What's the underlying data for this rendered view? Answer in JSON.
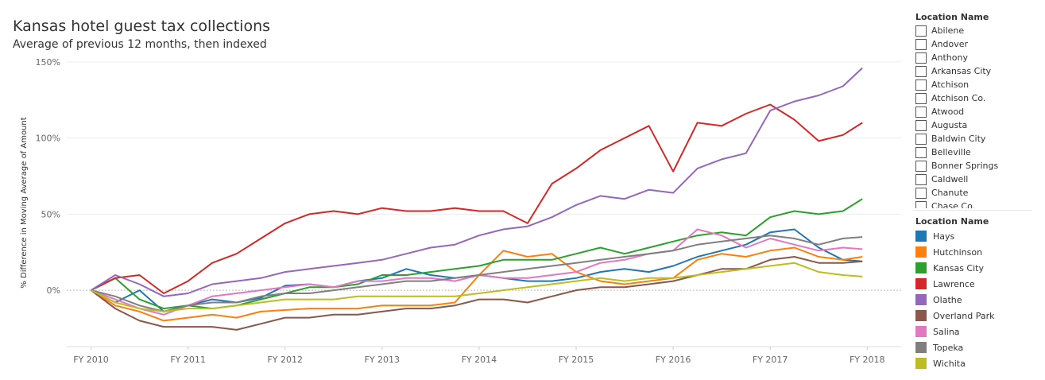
{
  "page": {
    "title": "Kansas hotel guest tax collections",
    "subtitle": "Average of previous 12 months, then indexed"
  },
  "filter": {
    "title": "Location Name",
    "items": [
      "Abilene",
      "Andover",
      "Anthony",
      "Arkansas City",
      "Atchison",
      "Atchison Co.",
      "Atwood",
      "Augusta",
      "Baldwin City",
      "Belleville",
      "Bonner Springs",
      "Caldwell",
      "Chanute",
      "Chase Co."
    ]
  },
  "legend": {
    "title": "Location Name"
  },
  "colors": {
    "Hays": "#1f77b4",
    "Hutchinson": "#ff7f0e",
    "Kansas City": "#2ca02c",
    "Lawrence": "#d62728",
    "Olathe": "#9467bd",
    "Overland Park": "#8c564b",
    "Salina": "#e377c2",
    "Topeka": "#7f7f7f",
    "Wichita": "#bcbd22"
  },
  "chart_data": {
    "type": "line",
    "ylabel": "% Difference in Moving Average of Amount",
    "xlabel": "",
    "ylim": [
      -37,
      152
    ],
    "xlim": [
      2009.75,
      2018.35
    ],
    "yticks": [
      0,
      50,
      100,
      150
    ],
    "ytick_labels": [
      "0%",
      "50%",
      "100%",
      "150%"
    ],
    "xticks": [
      2010,
      2011,
      2012,
      2013,
      2014,
      2015,
      2016,
      2017,
      2018
    ],
    "xtick_labels": [
      "FY 2010",
      "FY 2011",
      "FY 2012",
      "FY 2013",
      "FY 2014",
      "FY 2015",
      "FY 2016",
      "FY 2017",
      "FY 2018"
    ],
    "grid": true,
    "legend_position": "right",
    "series": [
      {
        "name": "Hays",
        "x": [
          2010.0,
          2010.25,
          2010.5,
          2010.75,
          2011.0,
          2011.25,
          2011.5,
          2011.75,
          2012.0,
          2012.25,
          2012.5,
          2012.75,
          2013.0,
          2013.25,
          2013.5,
          2013.75,
          2014.0,
          2014.25,
          2014.5,
          2014.75,
          2015.0,
          2015.25,
          2015.5,
          2015.75,
          2016.0,
          2016.25,
          2016.5,
          2016.75,
          2017.0,
          2017.25,
          2017.5,
          2017.75,
          2017.95
        ],
        "y": [
          0,
          -8,
          0,
          -14,
          -10,
          -6,
          -8,
          -5,
          3,
          4,
          2,
          6,
          8,
          14,
          10,
          8,
          10,
          8,
          6,
          6,
          8,
          12,
          14,
          12,
          16,
          22,
          26,
          30,
          38,
          40,
          28,
          20,
          19
        ]
      },
      {
        "name": "Hutchinson",
        "x": [
          2010.0,
          2010.25,
          2010.5,
          2010.75,
          2011.0,
          2011.25,
          2011.5,
          2011.75,
          2012.0,
          2012.25,
          2012.5,
          2012.75,
          2013.0,
          2013.25,
          2013.5,
          2013.75,
          2014.0,
          2014.25,
          2014.5,
          2014.75,
          2015.0,
          2015.25,
          2015.5,
          2015.75,
          2016.0,
          2016.25,
          2016.5,
          2016.75,
          2017.0,
          2017.25,
          2017.5,
          2017.75,
          2017.95
        ],
        "y": [
          0,
          -10,
          -14,
          -20,
          -18,
          -16,
          -18,
          -14,
          -13,
          -12,
          -12,
          -12,
          -10,
          -10,
          -10,
          -8,
          10,
          26,
          22,
          24,
          12,
          6,
          4,
          6,
          8,
          20,
          24,
          22,
          26,
          28,
          22,
          20,
          22
        ]
      },
      {
        "name": "Kansas City",
        "x": [
          2010.0,
          2010.25,
          2010.5,
          2010.75,
          2011.0,
          2011.25,
          2011.5,
          2011.75,
          2012.0,
          2012.25,
          2012.5,
          2012.75,
          2013.0,
          2013.25,
          2013.5,
          2013.75,
          2014.0,
          2014.25,
          2014.5,
          2014.75,
          2015.0,
          2015.25,
          2015.5,
          2015.75,
          2016.0,
          2016.25,
          2016.5,
          2016.75,
          2017.0,
          2017.25,
          2017.5,
          2017.75,
          2017.95
        ],
        "y": [
          0,
          8,
          -6,
          -12,
          -10,
          -12,
          -10,
          -6,
          -2,
          2,
          2,
          4,
          10,
          10,
          12,
          14,
          16,
          20,
          20,
          20,
          24,
          28,
          24,
          28,
          32,
          36,
          38,
          36,
          48,
          52,
          50,
          52,
          60
        ]
      },
      {
        "name": "Lawrence",
        "x": [
          2010.0,
          2010.25,
          2010.5,
          2010.75,
          2011.0,
          2011.25,
          2011.5,
          2011.75,
          2012.0,
          2012.25,
          2012.5,
          2012.75,
          2013.0,
          2013.25,
          2013.5,
          2013.75,
          2014.0,
          2014.25,
          2014.5,
          2014.75,
          2015.0,
          2015.25,
          2015.5,
          2015.75,
          2016.0,
          2016.25,
          2016.5,
          2016.75,
          2017.0,
          2017.25,
          2017.5,
          2017.75,
          2017.95
        ],
        "y": [
          0,
          8,
          10,
          -2,
          6,
          18,
          24,
          34,
          44,
          50,
          52,
          50,
          54,
          52,
          52,
          54,
          52,
          52,
          44,
          70,
          80,
          92,
          100,
          108,
          78,
          110,
          108,
          116,
          122,
          112,
          98,
          102,
          110
        ]
      },
      {
        "name": "Olathe",
        "x": [
          2010.0,
          2010.25,
          2010.5,
          2010.75,
          2011.0,
          2011.25,
          2011.5,
          2011.75,
          2012.0,
          2012.25,
          2012.5,
          2012.75,
          2013.0,
          2013.25,
          2013.5,
          2013.75,
          2014.0,
          2014.25,
          2014.5,
          2014.75,
          2015.0,
          2015.25,
          2015.5,
          2015.75,
          2016.0,
          2016.25,
          2016.5,
          2016.75,
          2017.0,
          2017.25,
          2017.5,
          2017.75,
          2017.95
        ],
        "y": [
          0,
          10,
          4,
          -4,
          -2,
          4,
          6,
          8,
          12,
          14,
          16,
          18,
          20,
          24,
          28,
          30,
          36,
          40,
          42,
          48,
          56,
          62,
          60,
          66,
          64,
          80,
          86,
          90,
          118,
          124,
          128,
          134,
          146
        ]
      },
      {
        "name": "Overland Park",
        "x": [
          2010.0,
          2010.25,
          2010.5,
          2010.75,
          2011.0,
          2011.25,
          2011.5,
          2011.75,
          2012.0,
          2012.25,
          2012.5,
          2012.75,
          2013.0,
          2013.25,
          2013.5,
          2013.75,
          2014.0,
          2014.25,
          2014.5,
          2014.75,
          2015.0,
          2015.25,
          2015.5,
          2015.75,
          2016.0,
          2016.25,
          2016.5,
          2016.75,
          2017.0,
          2017.25,
          2017.5,
          2017.75,
          2017.95
        ],
        "y": [
          0,
          -12,
          -20,
          -24,
          -24,
          -24,
          -26,
          -22,
          -18,
          -18,
          -16,
          -16,
          -14,
          -12,
          -12,
          -10,
          -6,
          -6,
          -8,
          -4,
          0,
          2,
          2,
          4,
          6,
          10,
          14,
          14,
          20,
          22,
          18,
          18,
          19
        ]
      },
      {
        "name": "Salina",
        "x": [
          2010.0,
          2010.25,
          2010.5,
          2010.75,
          2011.0,
          2011.25,
          2011.5,
          2011.75,
          2012.0,
          2012.25,
          2012.5,
          2012.75,
          2013.0,
          2013.25,
          2013.5,
          2013.75,
          2014.0,
          2014.25,
          2014.5,
          2014.75,
          2015.0,
          2015.25,
          2015.5,
          2015.75,
          2016.0,
          2016.25,
          2016.5,
          2016.75,
          2017.0,
          2017.25,
          2017.5,
          2017.75,
          2017.95
        ],
        "y": [
          0,
          -6,
          -12,
          -16,
          -10,
          -4,
          -2,
          0,
          2,
          4,
          2,
          6,
          6,
          8,
          8,
          6,
          10,
          8,
          8,
          10,
          12,
          18,
          20,
          24,
          26,
          40,
          36,
          28,
          34,
          30,
          26,
          28,
          27
        ]
      },
      {
        "name": "Topeka",
        "x": [
          2010.0,
          2010.25,
          2010.5,
          2010.75,
          2011.0,
          2011.25,
          2011.5,
          2011.75,
          2012.0,
          2012.25,
          2012.5,
          2012.75,
          2013.0,
          2013.25,
          2013.5,
          2013.75,
          2014.0,
          2014.25,
          2014.5,
          2014.75,
          2015.0,
          2015.25,
          2015.5,
          2015.75,
          2016.0,
          2016.25,
          2016.5,
          2016.75,
          2017.0,
          2017.25,
          2017.5,
          2017.75,
          2017.95
        ],
        "y": [
          0,
          -4,
          -10,
          -14,
          -10,
          -8,
          -8,
          -4,
          -2,
          -2,
          0,
          2,
          4,
          6,
          6,
          8,
          10,
          12,
          14,
          16,
          18,
          20,
          22,
          24,
          26,
          30,
          32,
          34,
          36,
          34,
          30,
          34,
          35
        ]
      },
      {
        "name": "Wichita",
        "x": [
          2010.0,
          2010.25,
          2010.5,
          2010.75,
          2011.0,
          2011.25,
          2011.5,
          2011.75,
          2012.0,
          2012.25,
          2012.5,
          2012.75,
          2013.0,
          2013.25,
          2013.5,
          2013.75,
          2014.0,
          2014.25,
          2014.5,
          2014.75,
          2015.0,
          2015.25,
          2015.5,
          2015.75,
          2016.0,
          2016.25,
          2016.5,
          2016.75,
          2017.0,
          2017.25,
          2017.5,
          2017.75,
          2017.95
        ],
        "y": [
          0,
          -8,
          -12,
          -14,
          -12,
          -12,
          -10,
          -8,
          -6,
          -6,
          -6,
          -4,
          -4,
          -4,
          -4,
          -4,
          -2,
          0,
          2,
          4,
          6,
          8,
          6,
          8,
          8,
          10,
          12,
          14,
          16,
          18,
          12,
          10,
          9
        ]
      }
    ]
  }
}
